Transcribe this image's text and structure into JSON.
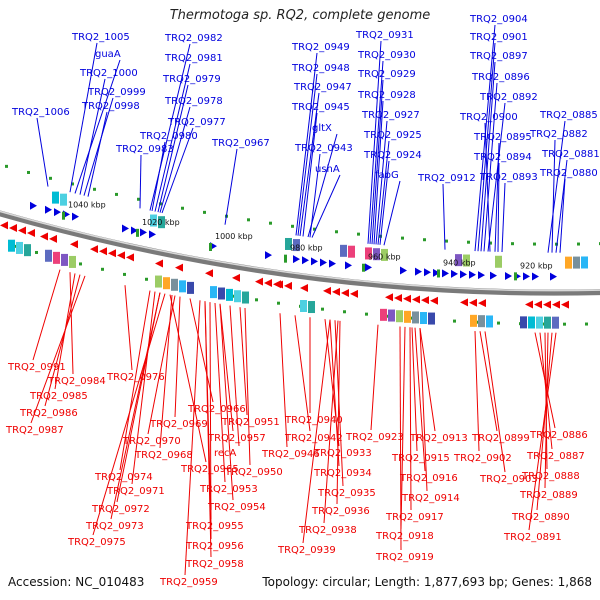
{
  "title": "Thermotoga sp. RQ2, complete genome",
  "footer": {
    "accession": "Accession: NC_010483",
    "summary": "Topology: circular; Length: 1,877,693 bp; Genes: 1,868"
  },
  "colors": {
    "forward_strand": "#0000dd",
    "reverse_strand": "#ee0000",
    "backbone": "#7a7a7a",
    "tick": "#2a9a2a"
  },
  "kbp_labels": [
    "1040 kbp",
    "1020 kbp",
    "1000 kbp",
    "980 kbp",
    "960 kbp",
    "940 kbp",
    "920 kbp"
  ],
  "top_labels": [
    "TRQ2_1005",
    "guaA",
    "TRQ2_1000",
    "TRQ2_0999",
    "TRQ2_0998",
    "TRQ2_1006",
    "TRQ2_0983",
    "TRQ2_0982",
    "TRQ2_0981",
    "TRQ2_0979",
    "TRQ2_0978",
    "TRQ2_0977",
    "TRQ2_0980",
    "TRQ2_0967",
    "TRQ2_0949",
    "TRQ2_0948",
    "TRQ2_0947",
    "TRQ2_0945",
    "gltX",
    "TRQ2_0943",
    "ushA",
    "TRQ2_0931",
    "TRQ2_0930",
    "TRQ2_0929",
    "TRQ2_0928",
    "TRQ2_0927",
    "TRQ2_0925",
    "TRQ2_0924",
    "fabG",
    "TRQ2_0912",
    "TRQ2_0904",
    "TRQ2_0901",
    "TRQ2_0897",
    "TRQ2_0896",
    "TRQ2_0892",
    "TRQ2_0900",
    "TRQ2_0895",
    "TRQ2_0894",
    "TRQ2_0893",
    "TRQ2_0885",
    "TRQ2_0882",
    "TRQ2_0881",
    "TRQ2_0880"
  ],
  "bottom_labels": [
    "TRQ2_0991",
    "TRQ2_0984",
    "TRQ2_0985",
    "TRQ2_0986",
    "TRQ2_0987",
    "TRQ2_0976",
    "TRQ2_0966",
    "TRQ2_0969",
    "TRQ2_0970",
    "TRQ2_0968",
    "TRQ2_0965",
    "TRQ2_0974",
    "TRQ2_0971",
    "TRQ2_0972",
    "TRQ2_0973",
    "TRQ2_0975",
    "TRQ2_0957",
    "recA",
    "TRQ2_0951",
    "TRQ2_0950",
    "TRQ2_0953",
    "TRQ2_0954",
    "TRQ2_0955",
    "TRQ2_0956",
    "TRQ2_0958",
    "TRQ2_0959",
    "TRQ2_0942",
    "TRQ2_0946",
    "TRQ2_0940",
    "TRQ2_0933",
    "TRQ2_0934",
    "TRQ2_0935",
    "TRQ2_0936",
    "TRQ2_0938",
    "TRQ2_0939",
    "TRQ2_0923",
    "TRQ2_0913",
    "TRQ2_0915",
    "TRQ2_0916",
    "TRQ2_0914",
    "TRQ2_0917",
    "TRQ2_0918",
    "TRQ2_0919",
    "TRQ2_0899",
    "TRQ2_0902",
    "TRQ2_0903",
    "TRQ2_0886",
    "TRQ2_0887",
    "TRQ2_0888",
    "TRQ2_0889",
    "TRQ2_0890",
    "TRQ2_0891"
  ]
}
